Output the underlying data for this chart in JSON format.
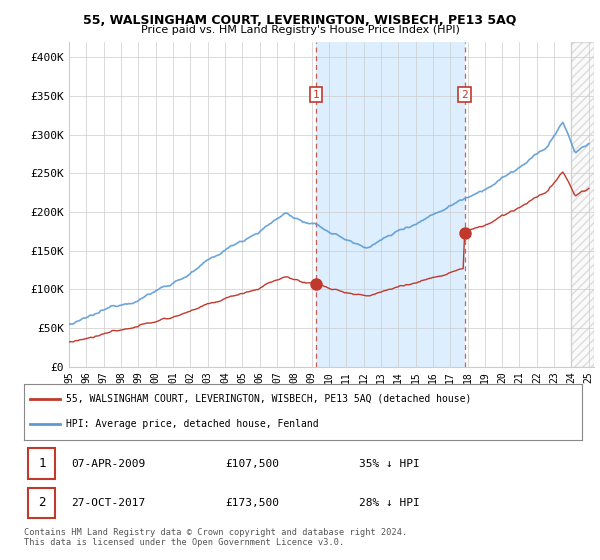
{
  "title": "55, WALSINGHAM COURT, LEVERINGTON, WISBECH, PE13 5AQ",
  "subtitle": "Price paid vs. HM Land Registry's House Price Index (HPI)",
  "ylabel_ticks": [
    "£0",
    "£50K",
    "£100K",
    "£150K",
    "£200K",
    "£250K",
    "£300K",
    "£350K",
    "£400K"
  ],
  "ytick_values": [
    0,
    50000,
    100000,
    150000,
    200000,
    250000,
    300000,
    350000,
    400000
  ],
  "ylim": [
    0,
    420000
  ],
  "xlim_start": 1995.0,
  "xlim_end": 2025.3,
  "hpi_color": "#5b9bd5",
  "price_color": "#c0392b",
  "marker1_x": 2009.27,
  "marker1_y": 107500,
  "marker2_x": 2017.83,
  "marker2_y": 173500,
  "vline1_x": 2009.27,
  "vline2_x": 2017.83,
  "shade_color": "#ddeeff",
  "legend_label_price": "55, WALSINGHAM COURT, LEVERINGTON, WISBECH, PE13 5AQ (detached house)",
  "legend_label_hpi": "HPI: Average price, detached house, Fenland",
  "table_row1": [
    "1",
    "07-APR-2009",
    "£107,500",
    "35% ↓ HPI"
  ],
  "table_row2": [
    "2",
    "27-OCT-2017",
    "£173,500",
    "28% ↓ HPI"
  ],
  "footnote": "Contains HM Land Registry data © Crown copyright and database right 2024.\nThis data is licensed under the Open Government Licence v3.0.",
  "bg_color": "#ffffff",
  "grid_color": "#cccccc"
}
